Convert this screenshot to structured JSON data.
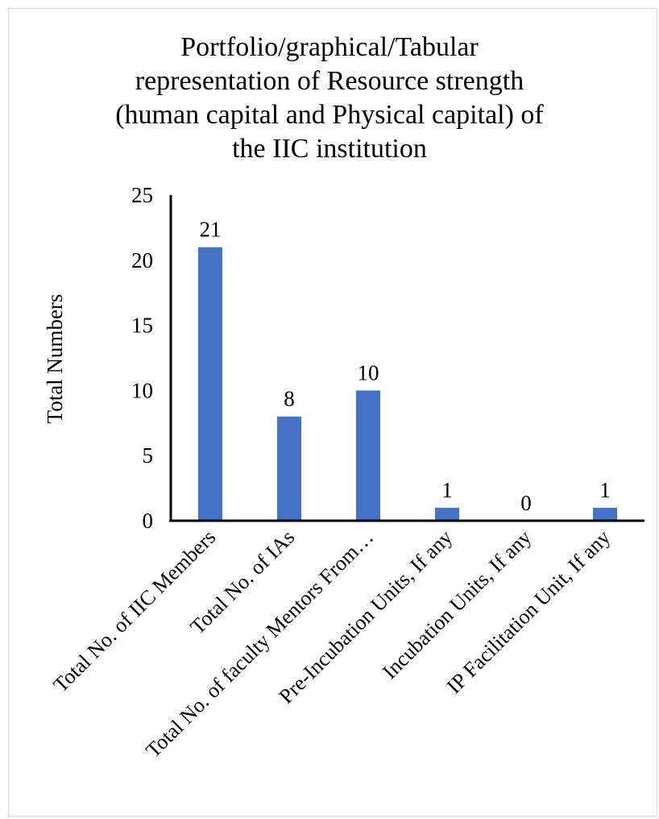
{
  "chart_data": {
    "type": "bar",
    "title_lines": [
      "Portfolio/graphical/Tabular",
      "representation of Resource strength",
      "(human capital and Physical capital) of",
      "the IIC institution"
    ],
    "title": "Portfolio/graphical/Tabular representation of Resource strength (human capital and Physical capital) of the IIC institution",
    "ylabel": "Total Numbers",
    "xlabel": "",
    "categories": [
      "Total No. of IIC Members",
      "Total No. of IAs",
      "Total No. of faculty Mentors From…",
      "Pre-Incubation Units, If any",
      "Incubation Units, If any",
      "IP Facilitation Unit, If any"
    ],
    "values": [
      21,
      8,
      10,
      1,
      0,
      1
    ],
    "data_labels": [
      "21",
      "8",
      "10",
      "1",
      "0",
      "1"
    ],
    "ylim": [
      0,
      25
    ],
    "yticks": [
      0,
      5,
      10,
      15,
      20,
      25
    ],
    "grid": false,
    "legend": "none",
    "bar_color": "#4472c4"
  }
}
